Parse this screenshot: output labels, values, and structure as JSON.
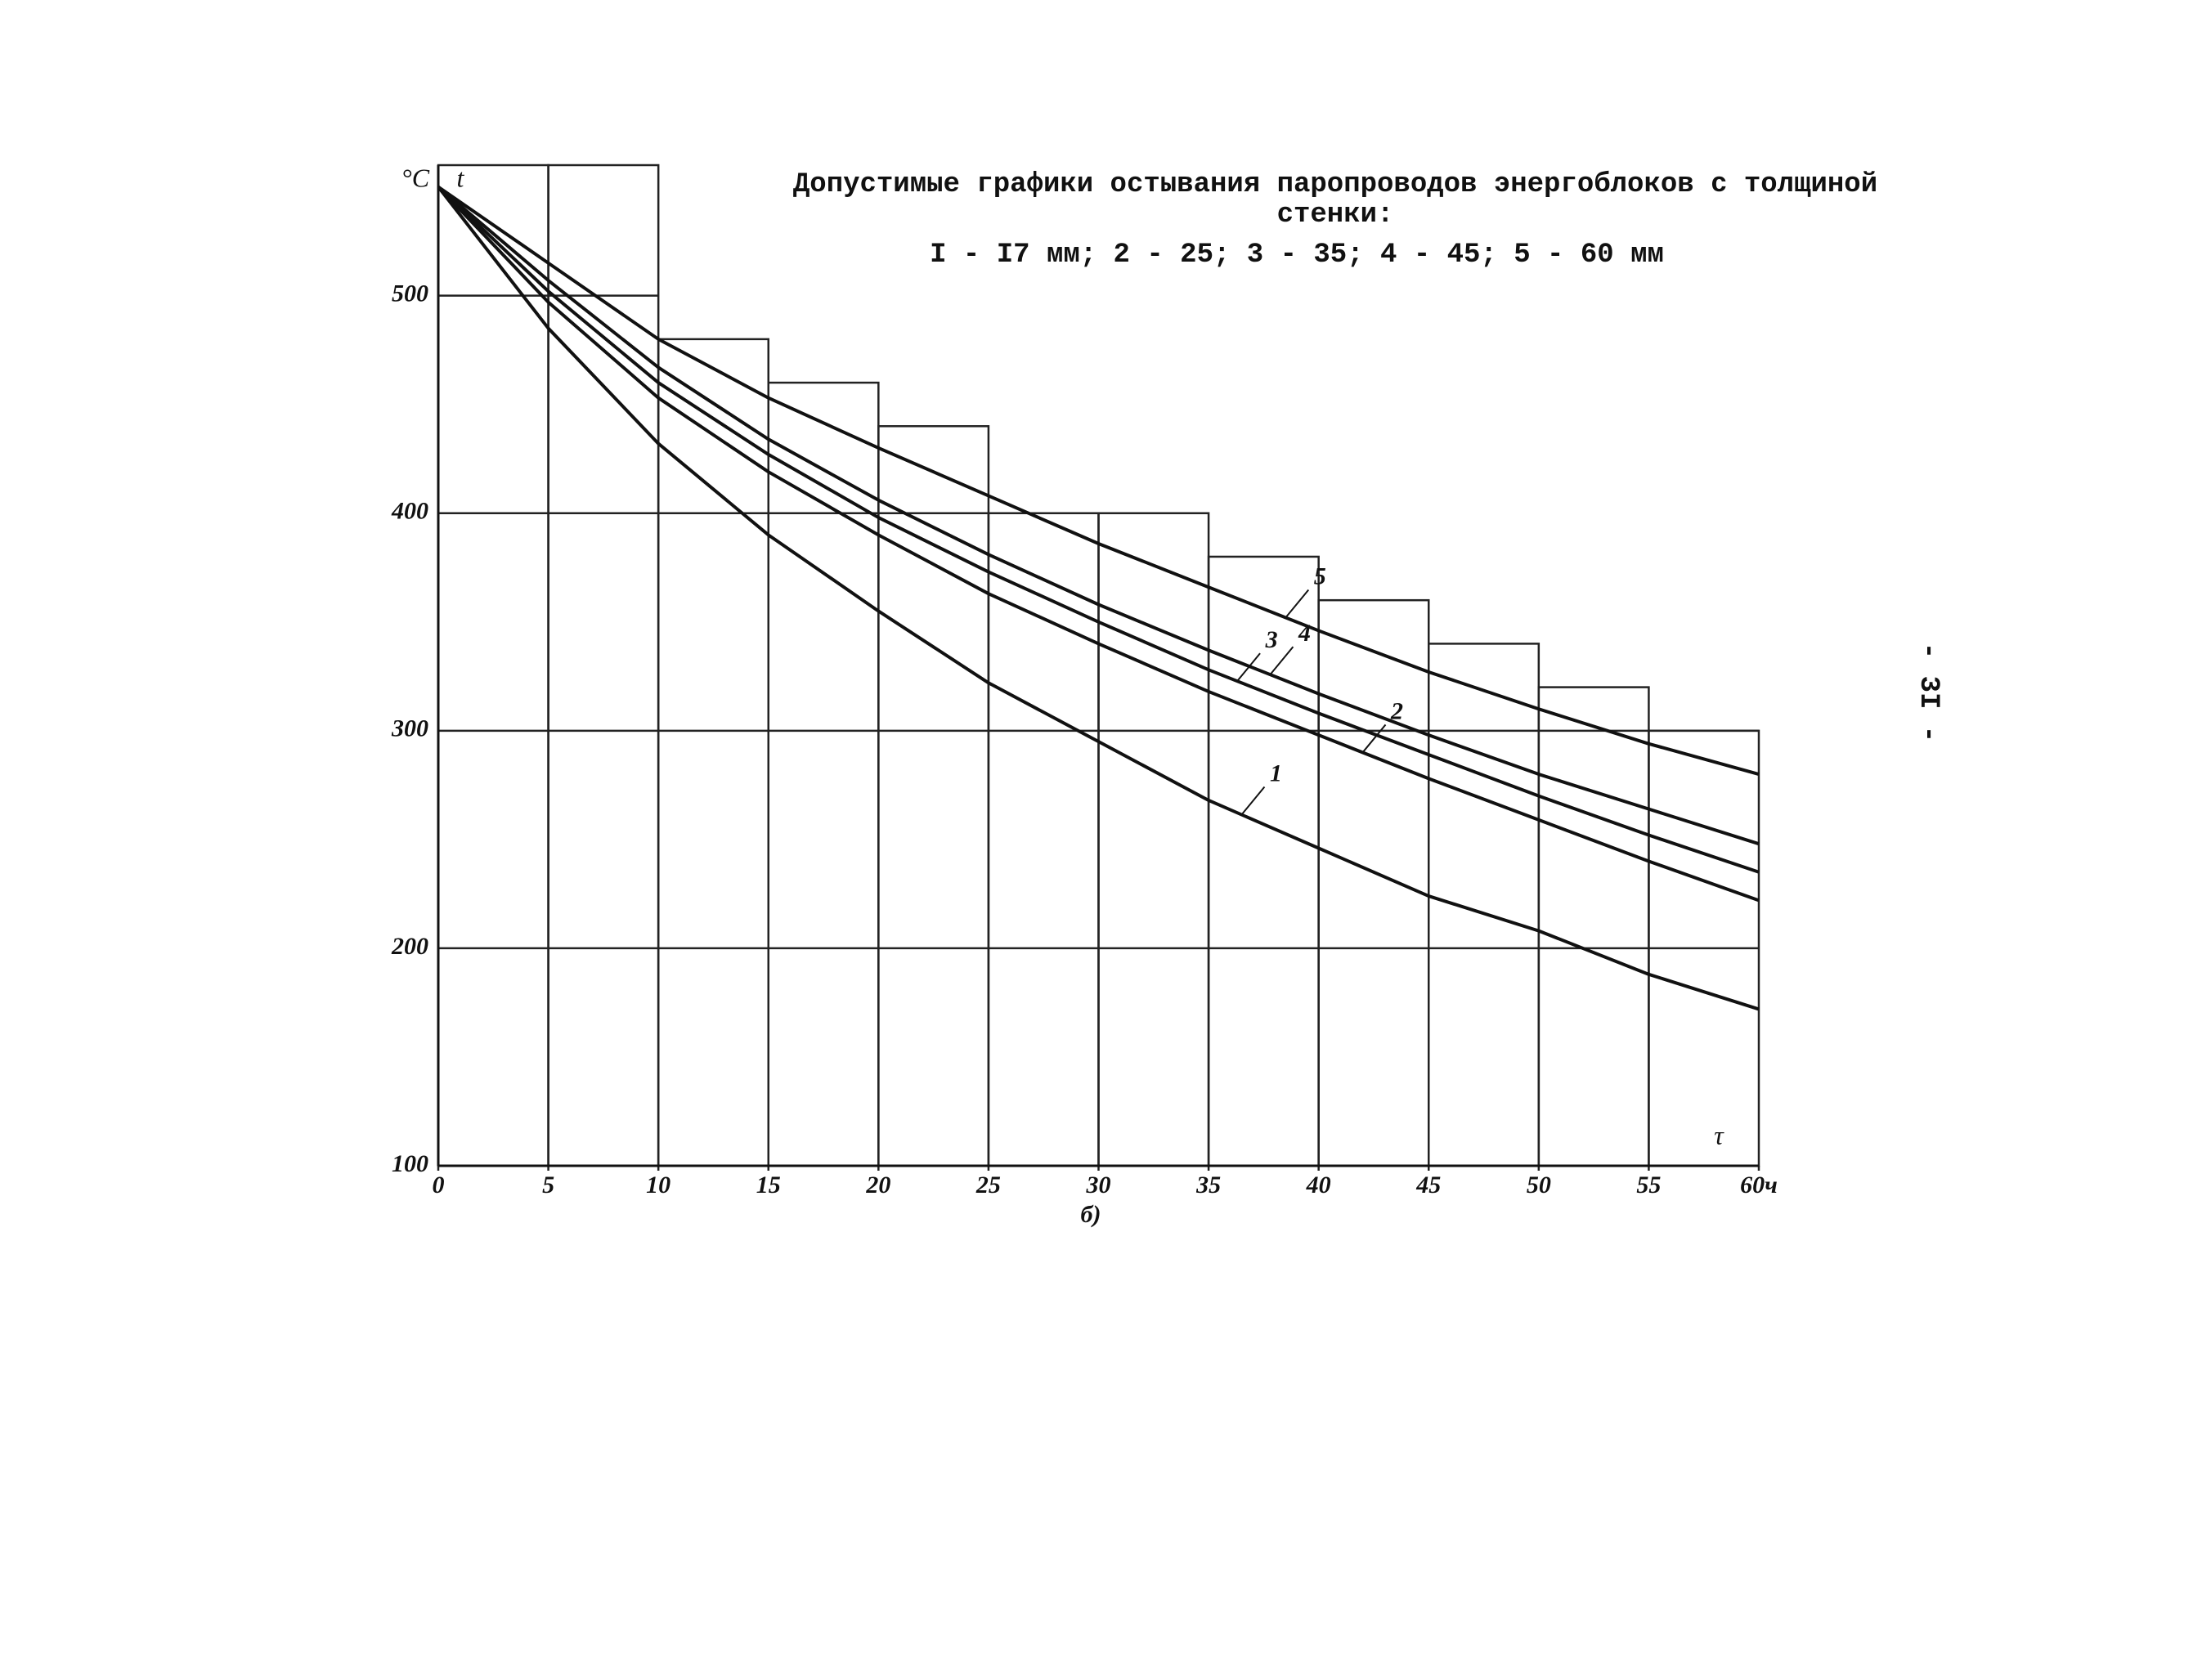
{
  "chart_data": {
    "type": "line",
    "title": [
      "Допустимые графики остывания паропроводов энергоблоков с толщиной",
      "стенки:",
      "I - I7 мм; 2 - 25; 3 - 35; 4 - 45; 5 - 60 мм"
    ],
    "y_unit": "°C",
    "y_label": "t",
    "x_label": "τ",
    "caption": "б)",
    "page_number": "- 3I -",
    "x": [
      0,
      5,
      10,
      15,
      20,
      25,
      30,
      35,
      40,
      45,
      50,
      55,
      60
    ],
    "series": [
      {
        "name": "1",
        "color": "#111111",
        "values": [
          550,
          485,
          432,
          390,
          355,
          322,
          295,
          268,
          246,
          224,
          208,
          188,
          172
        ]
      },
      {
        "name": "2",
        "color": "#111111",
        "values": [
          550,
          497,
          453,
          419,
          390,
          363,
          340,
          318,
          298,
          278,
          259,
          240,
          222
        ]
      },
      {
        "name": "3",
        "color": "#111111",
        "values": [
          550,
          502,
          460,
          427,
          398,
          373,
          350,
          328,
          308,
          289,
          270,
          252,
          235
        ]
      },
      {
        "name": "4",
        "color": "#111111",
        "values": [
          550,
          507,
          467,
          434,
          406,
          381,
          358,
          337,
          317,
          298,
          280,
          264,
          248
        ]
      },
      {
        "name": "5",
        "color": "#111111",
        "values": [
          550,
          515,
          480,
          453,
          430,
          408,
          386,
          366,
          346,
          327,
          310,
          294,
          280
        ]
      }
    ],
    "limit": {
      "bins": [
        0,
        5,
        10,
        15,
        20,
        25,
        30,
        35,
        40,
        45,
        50,
        55,
        60
      ],
      "values": [
        560,
        560,
        480,
        460,
        440,
        400,
        400,
        380,
        360,
        340,
        320,
        300
      ]
    },
    "xlim": [
      0,
      60
    ],
    "ylim": [
      100,
      560
    ],
    "xticks": [
      0,
      5,
      10,
      15,
      20,
      25,
      30,
      35,
      40,
      45,
      50,
      55,
      {
        "value": 60,
        "label": "60ч"
      }
    ],
    "yticks": [
      100,
      200,
      300,
      400,
      500
    ],
    "grid": true
  }
}
